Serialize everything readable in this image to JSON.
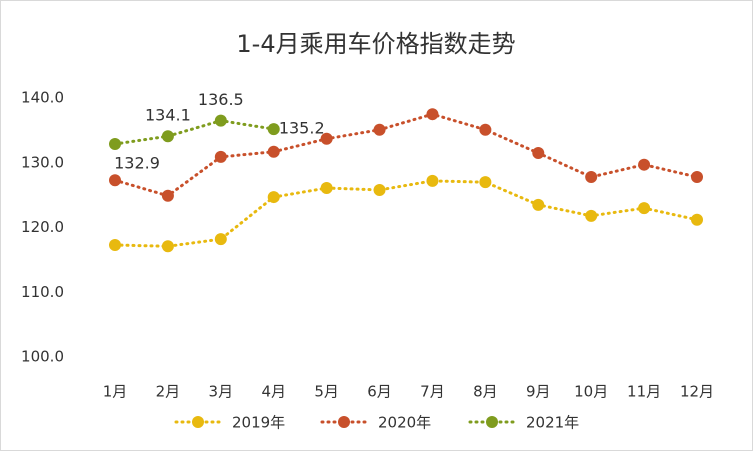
{
  "chart_data": {
    "type": "line",
    "title": "1-4月乘用车价格指数走势",
    "categories": [
      "1月",
      "2月",
      "3月",
      "4月",
      "5月",
      "6月",
      "7月",
      "8月",
      "9月",
      "10月",
      "11月",
      "12月"
    ],
    "series": [
      {
        "name": "2019年",
        "color": "#e8b90f",
        "values": [
          117.3,
          117.1,
          118.2,
          124.7,
          126.1,
          125.8,
          127.2,
          127.0,
          123.5,
          121.8,
          123.0,
          121.2
        ]
      },
      {
        "name": "2020年",
        "color": "#c8502b",
        "values": [
          127.3,
          124.9,
          130.9,
          131.7,
          133.7,
          135.1,
          137.5,
          135.1,
          131.5,
          127.8,
          129.7,
          127.8
        ]
      },
      {
        "name": "2021年",
        "color": "#7f9c1e",
        "values": [
          132.9,
          134.1,
          136.5,
          135.2,
          null,
          null,
          null,
          null,
          null,
          null,
          null,
          null
        ],
        "data_labels": true
      }
    ],
    "ylim": [
      100,
      140
    ],
    "yticks": [
      {
        "value": 100,
        "label": "100.0"
      },
      {
        "value": 110,
        "label": "110.0"
      },
      {
        "value": 120,
        "label": "120.0"
      },
      {
        "value": 130,
        "label": "130.0"
      },
      {
        "value": 140,
        "label": "140.0"
      }
    ],
    "grid": false,
    "legend": "bottom"
  }
}
